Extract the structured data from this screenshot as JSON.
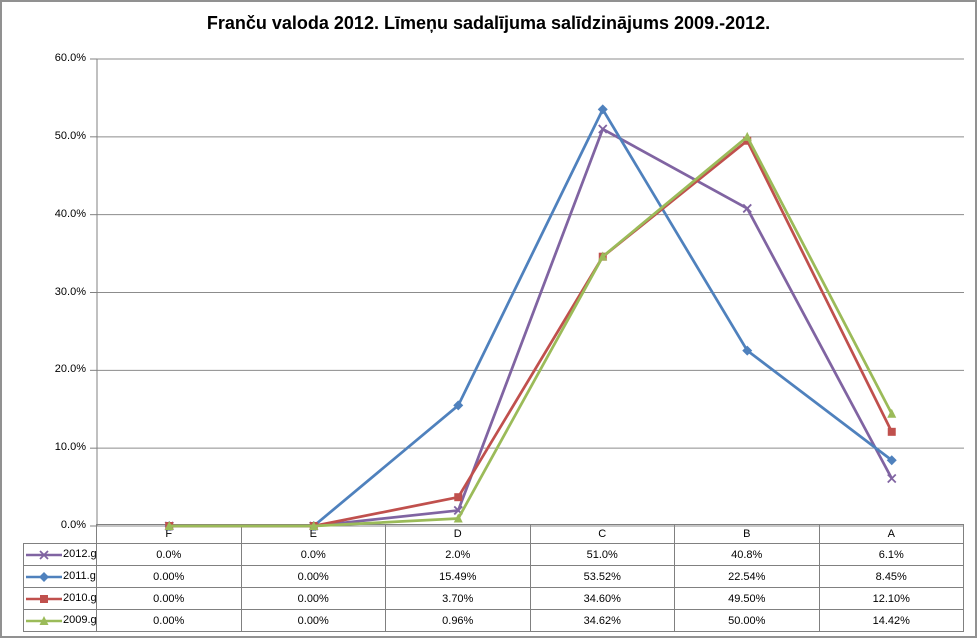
{
  "chart_data": {
    "type": "line",
    "title": "Franču valoda 2012. Līmeņu sadalījuma salīdzinājums 2009.-2012.",
    "categories": [
      "F",
      "E",
      "D",
      "C",
      "B",
      "A"
    ],
    "series": [
      {
        "name": "2012.g.",
        "values": [
          0.0,
          0.0,
          2.0,
          51.0,
          40.8,
          6.1
        ],
        "display": [
          "0.0%",
          "0.0%",
          "2.0%",
          "51.0%",
          "40.8%",
          "6.1%"
        ],
        "color": "#8064A2",
        "marker": "x"
      },
      {
        "name": "2011.g.",
        "values": [
          0.0,
          0.0,
          15.49,
          53.52,
          22.54,
          8.45
        ],
        "display": [
          "0.00%",
          "0.00%",
          "15.49%",
          "53.52%",
          "22.54%",
          "8.45%"
        ],
        "color": "#4F81BD",
        "marker": "diamond"
      },
      {
        "name": "2010.g.",
        "values": [
          0.0,
          0.0,
          3.7,
          34.6,
          49.5,
          12.1
        ],
        "display": [
          "0.00%",
          "0.00%",
          "3.70%",
          "34.60%",
          "49.50%",
          "12.10%"
        ],
        "color": "#C0504D",
        "marker": "square"
      },
      {
        "name": "2009.g.",
        "values": [
          0.0,
          0.0,
          0.96,
          34.62,
          50.0,
          14.42
        ],
        "display": [
          "0.00%",
          "0.00%",
          "0.96%",
          "34.62%",
          "50.00%",
          "14.42%"
        ],
        "color": "#9BBB59",
        "marker": "triangle"
      }
    ],
    "y_axis": {
      "min": 0,
      "max": 60,
      "step": 10,
      "tick_labels": [
        "0.0%",
        "10.0%",
        "20.0%",
        "30.0%",
        "40.0%",
        "50.0%",
        "60.0%"
      ]
    },
    "grid": true,
    "legend_position": "table-left",
    "colors": {
      "grid": "#8C8C8C",
      "axis": "#808080",
      "table_border": "#808080",
      "outer_border": "#919191",
      "text": "#000000"
    }
  }
}
